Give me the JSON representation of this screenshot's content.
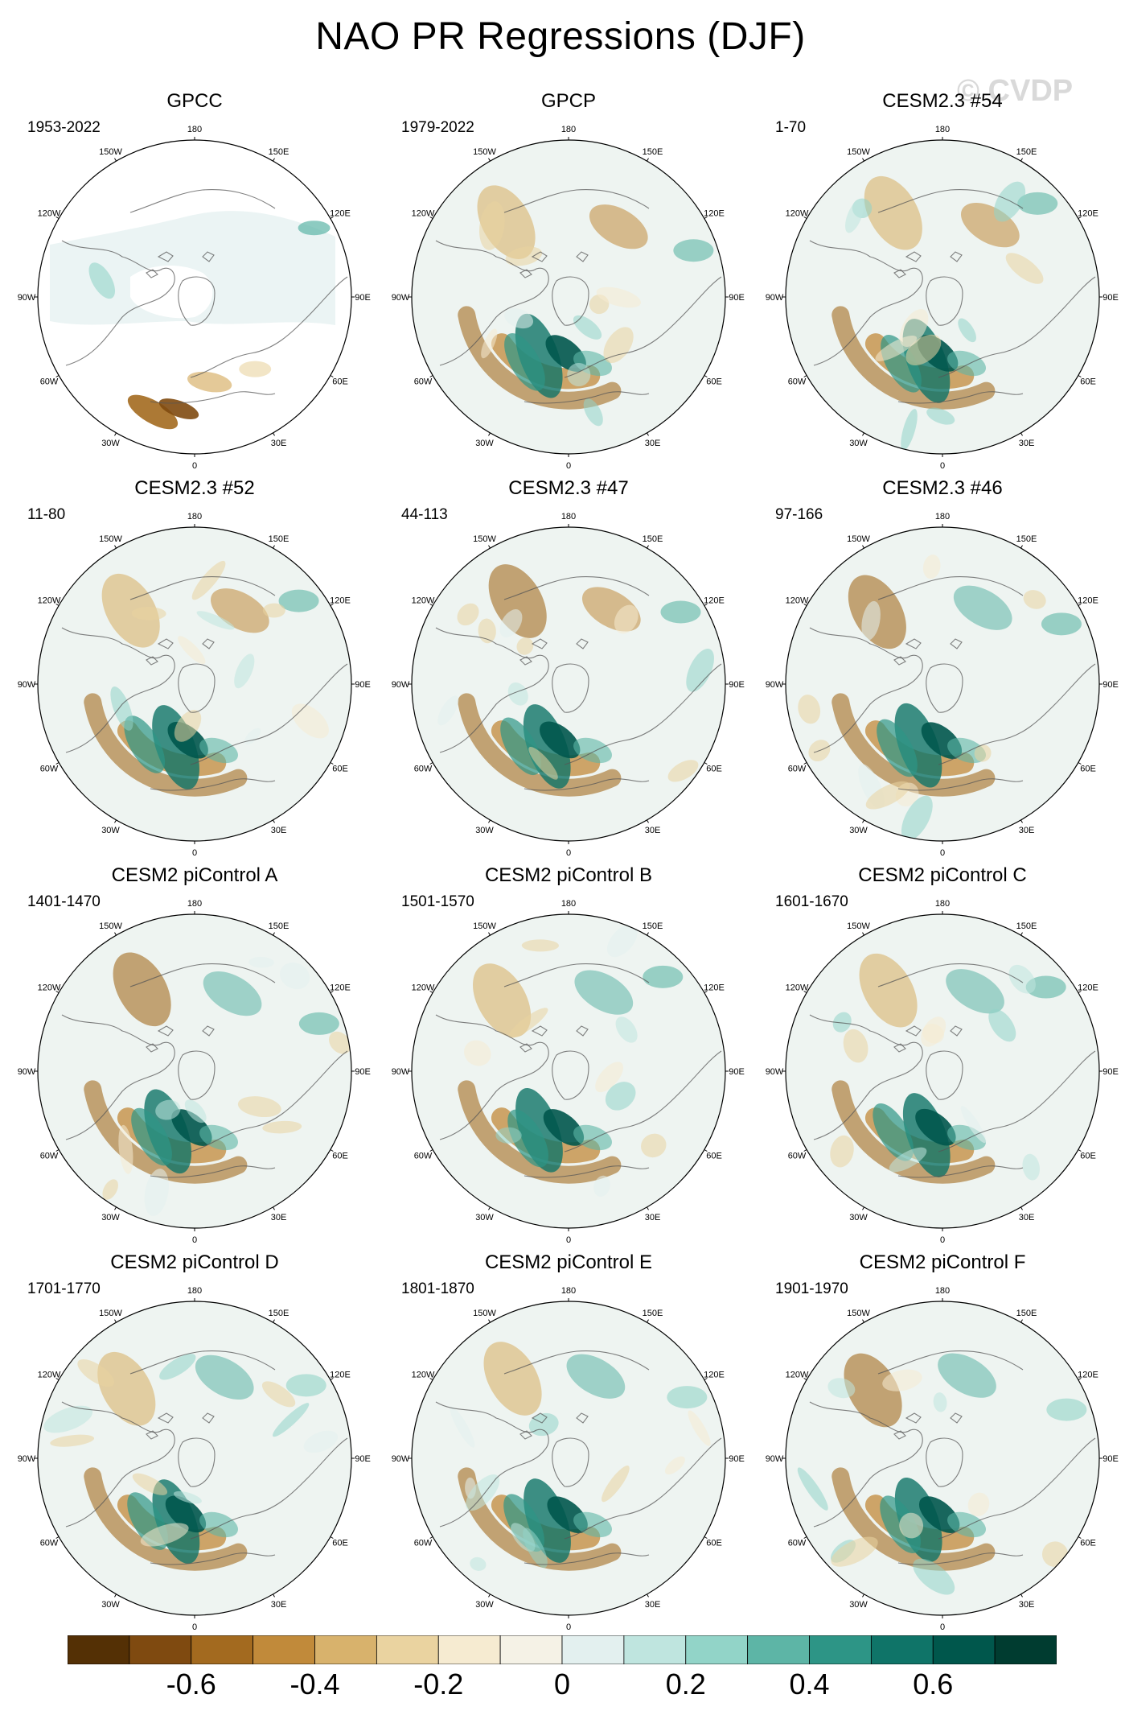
{
  "title": "NAO PR Regressions (DJF)",
  "watermark": "© CVDP",
  "longitude_labels": [
    "180",
    "150E",
    "120E",
    "90E",
    "60E",
    "30E",
    "0",
    "30W",
    "60W",
    "90W",
    "120W",
    "150W"
  ],
  "panels": [
    {
      "title": "GPCC",
      "years": "1953-2022",
      "masked_land": true,
      "pattern": 0
    },
    {
      "title": "GPCP",
      "years": "1979-2022",
      "masked_land": false,
      "pattern": 1
    },
    {
      "title": "CESM2.3 #54",
      "years": "1-70",
      "masked_land": false,
      "pattern": 2
    },
    {
      "title": "CESM2.3 #52",
      "years": "11-80",
      "masked_land": false,
      "pattern": 3
    },
    {
      "title": "CESM2.3 #47",
      "years": "44-113",
      "masked_land": false,
      "pattern": 4
    },
    {
      "title": "CESM2.3 #46",
      "years": "97-166",
      "masked_land": false,
      "pattern": 5
    },
    {
      "title": "CESM2 piControl A",
      "years": "1401-1470",
      "masked_land": false,
      "pattern": 6
    },
    {
      "title": "CESM2 piControl B",
      "years": "1501-1570",
      "masked_land": false,
      "pattern": 7
    },
    {
      "title": "CESM2 piControl C",
      "years": "1601-1670",
      "masked_land": false,
      "pattern": 8
    },
    {
      "title": "CESM2 piControl D",
      "years": "1701-1770",
      "masked_land": false,
      "pattern": 9
    },
    {
      "title": "CESM2 piControl E",
      "years": "1801-1870",
      "masked_land": false,
      "pattern": 10
    },
    {
      "title": "CESM2 piControl F",
      "years": "1901-1970",
      "masked_land": false,
      "pattern": 11
    }
  ],
  "colorbar": {
    "colors": [
      "#543005",
      "#7f4a10",
      "#a36a1f",
      "#c18a3a",
      "#d8b26c",
      "#ead3a0",
      "#f6ebd1",
      "#f5f2e6",
      "#e3f0ef",
      "#bfe5df",
      "#92d4c8",
      "#5db5a6",
      "#2d9586",
      "#0f7468",
      "#00574c",
      "#003c30"
    ],
    "tick_labels": [
      "-0.6",
      "-0.4",
      "-0.2",
      "0",
      "0.2",
      "0.4",
      "0.6"
    ],
    "tick_values": [
      -0.6,
      -0.4,
      -0.2,
      0,
      0.2,
      0.4,
      0.6
    ],
    "range": [
      -0.8,
      0.8
    ]
  }
}
